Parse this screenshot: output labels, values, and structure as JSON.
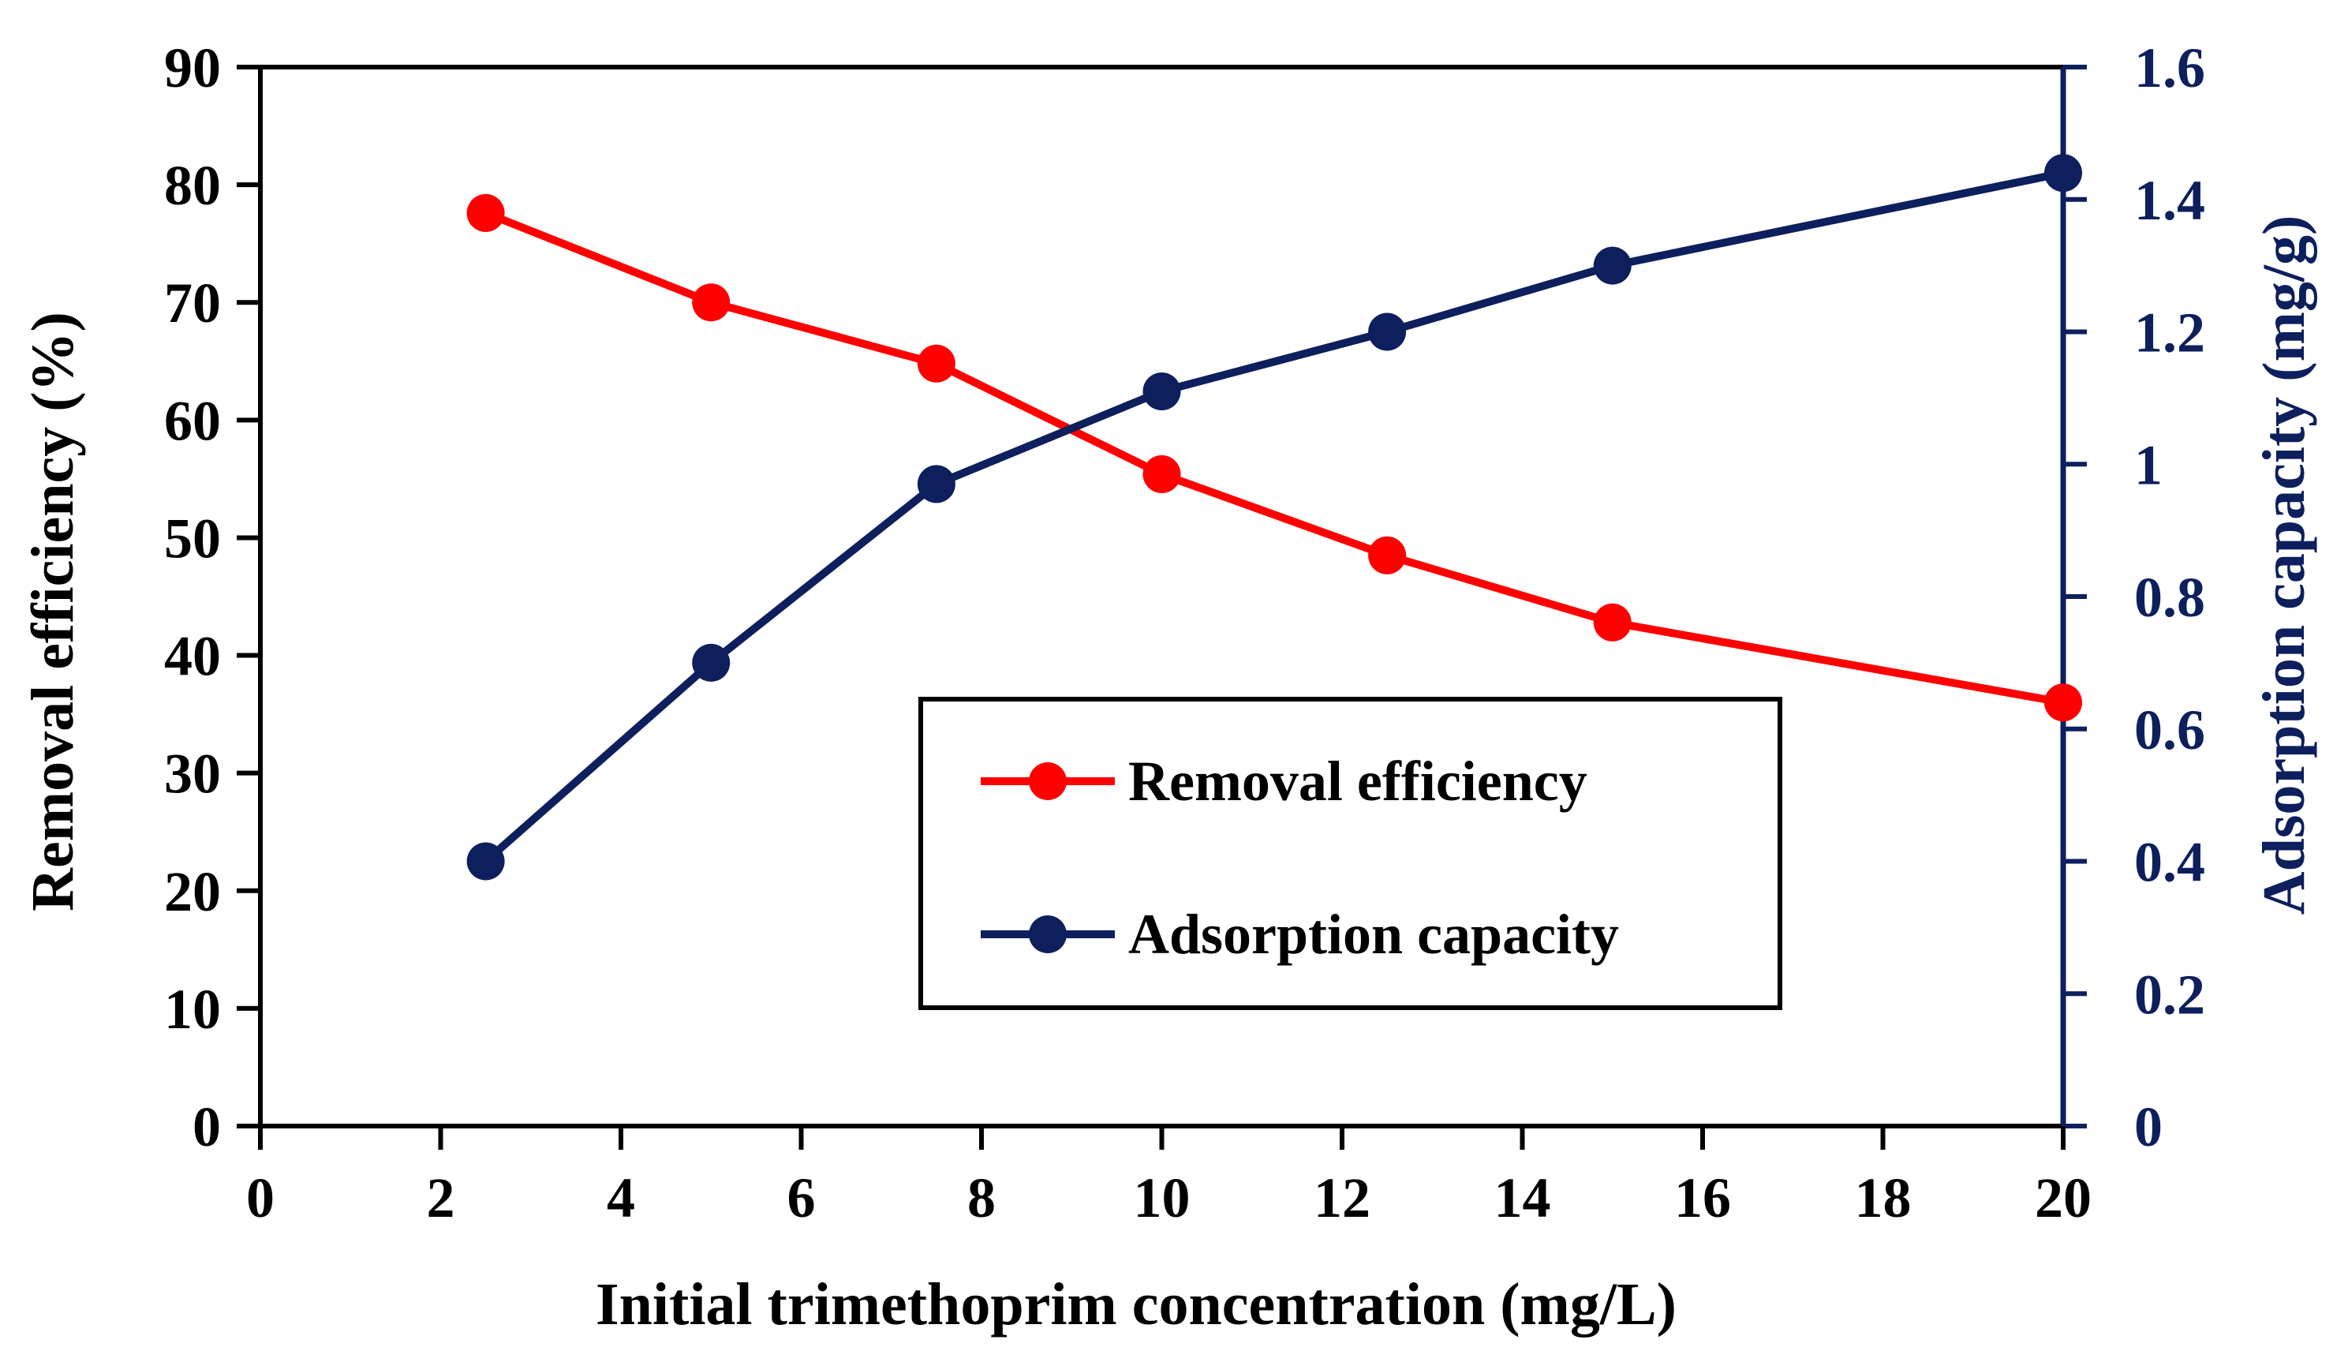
{
  "chart_data": {
    "type": "line",
    "title": "",
    "xlabel": "Initial trimethoprim concentration (mg/L)",
    "ylabel": "Removal efficiency (%)",
    "y2label": "Adsorption capacity (mg/g)",
    "xlim": [
      0,
      20
    ],
    "ylim": [
      0,
      90
    ],
    "y2lim": [
      0,
      1.6
    ],
    "x_ticks": [
      "0",
      "2",
      "4",
      "6",
      "8",
      "10",
      "12",
      "14",
      "16",
      "18",
      "20"
    ],
    "y_ticks": [
      "0",
      "10",
      "20",
      "30",
      "40",
      "50",
      "60",
      "70",
      "80",
      "90"
    ],
    "y2_ticks": [
      "0",
      "0.2",
      "0.4",
      "0.6",
      "0.8",
      "1",
      "1.2",
      "1.4",
      "1.6"
    ],
    "grid": false,
    "legend_position": "center-right",
    "series": [
      {
        "name": "Removal efficiency",
        "axis": "left",
        "color": "#ff0000",
        "x": [
          2.5,
          5,
          7.5,
          10,
          12.5,
          15,
          20
        ],
        "values": [
          77.6,
          70.0,
          64.8,
          55.4,
          48.5,
          42.8,
          36.0
        ]
      },
      {
        "name": "Adsorption capacity",
        "axis": "right",
        "color": "#0d1f5c",
        "x": [
          2.5,
          5,
          7.5,
          10,
          12.5,
          15,
          20
        ],
        "values": [
          0.4,
          0.7,
          0.97,
          1.11,
          1.2,
          1.3,
          1.44
        ]
      }
    ]
  }
}
